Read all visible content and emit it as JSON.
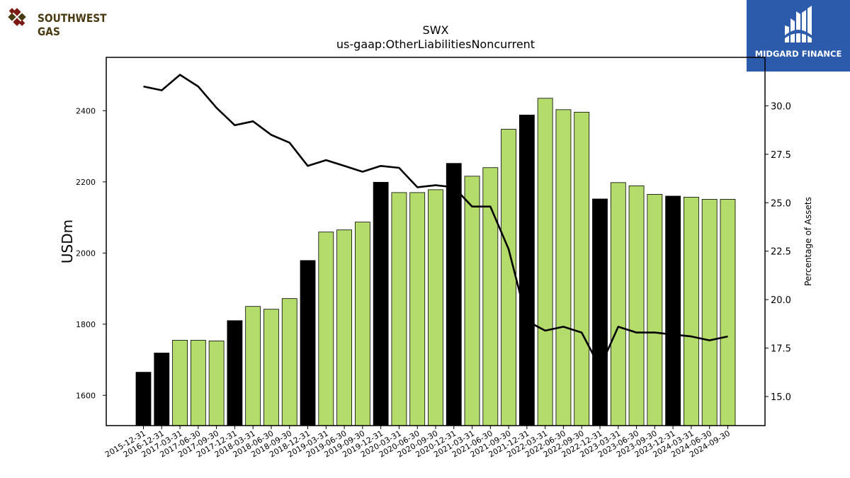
{
  "branding": {
    "company_logo": "southwest-gas-logo",
    "company_name": "SOUTHWEST GAS",
    "publisher_logo": "midgard-finance-logo",
    "publisher_name": "MIDGARD FINANCE"
  },
  "chart_data": {
    "type": "bar",
    "title": "SWX",
    "subtitle": "us-gaap:OtherLiabilitiesNoncurrent",
    "ylabel": "USDm",
    "y2label": "Percentage of Assets",
    "xlabel": "",
    "ylim": [
      1515,
      2550
    ],
    "y2lim": [
      13.5,
      32.5
    ],
    "yticks": [
      1600,
      1800,
      2000,
      2200,
      2400
    ],
    "y2ticks": [
      15.0,
      17.5,
      20.0,
      22.5,
      25.0,
      27.5,
      30.0
    ],
    "grid": false,
    "colors": {
      "annual_bar": "#000000",
      "quarter_bar": "#b3dc6b",
      "bar_edge": "#000000",
      "line": "#000000"
    },
    "categories": [
      "2015-12-31",
      "2016-12-31",
      "2017-03-31",
      "2017-06-30",
      "2017-09-30",
      "2017-12-31",
      "2018-03-31",
      "2018-06-30",
      "2018-09-30",
      "2018-12-31",
      "2019-03-31",
      "2019-06-30",
      "2019-09-30",
      "2019-12-31",
      "2020-03-31",
      "2020-06-30",
      "2020-09-30",
      "2020-12-31",
      "2021-03-31",
      "2021-06-30",
      "2021-09-30",
      "2021-12-31",
      "2022-03-31",
      "2022-06-30",
      "2022-09-30",
      "2022-12-31",
      "2023-03-31",
      "2023-06-30",
      "2023-09-30",
      "2023-12-31",
      "2024-03-31",
      "2024-06-30",
      "2024-09-30"
    ],
    "series": [
      {
        "type": "bar",
        "values": [
          1665,
          1719,
          1755,
          1755,
          1753,
          1810,
          1850,
          1842,
          1872,
          1979,
          2059,
          2065,
          2087,
          2199,
          2170,
          2170,
          2178,
          2252,
          2216,
          2240,
          2348,
          2388,
          2435,
          2403,
          2396,
          2152,
          2198,
          2189,
          2165,
          2160,
          2157,
          2151,
          2151
        ],
        "annual": [
          true,
          true,
          false,
          false,
          false,
          true,
          false,
          false,
          false,
          true,
          false,
          false,
          false,
          true,
          false,
          false,
          false,
          true,
          false,
          false,
          false,
          true,
          false,
          false,
          false,
          true,
          false,
          false,
          false,
          true,
          false,
          false,
          false
        ]
      },
      {
        "type": "line",
        "axis": "right",
        "values": [
          31.0,
          30.8,
          31.6,
          31.0,
          29.9,
          29.0,
          29.2,
          28.5,
          28.1,
          26.9,
          27.2,
          26.9,
          26.6,
          26.9,
          26.8,
          25.8,
          25.9,
          25.8,
          24.8,
          24.8,
          22.6,
          18.9,
          18.4,
          18.6,
          18.3,
          16.5,
          18.6,
          18.3,
          18.3,
          18.2,
          18.1,
          17.9,
          18.1
        ]
      }
    ]
  }
}
